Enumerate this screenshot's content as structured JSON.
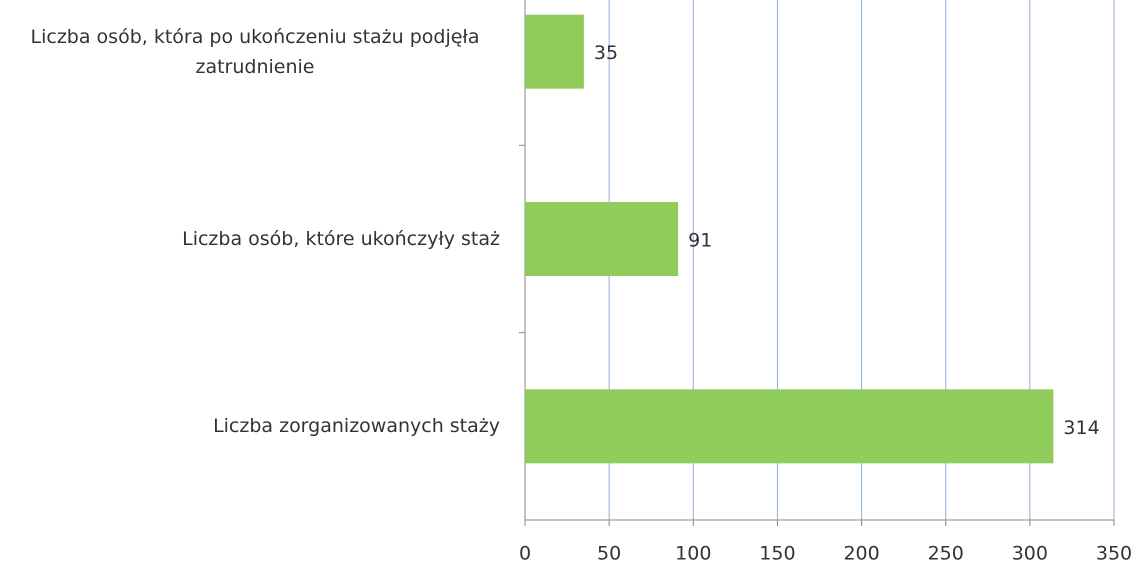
{
  "chart_data": {
    "type": "bar",
    "orientation": "horizontal",
    "categories": [
      "Liczba osób, która po ukończeniu stażu podjęła zatrudnienie",
      "Liczba osób, które ukończyły staż",
      "Liczba zorganizowanych staży"
    ],
    "values": [
      35,
      91,
      314
    ],
    "color": "#8fcc5c",
    "xlim": [
      0,
      350
    ],
    "xticks": [
      0,
      50,
      100,
      150,
      200,
      250,
      300,
      350
    ],
    "grid": true
  }
}
